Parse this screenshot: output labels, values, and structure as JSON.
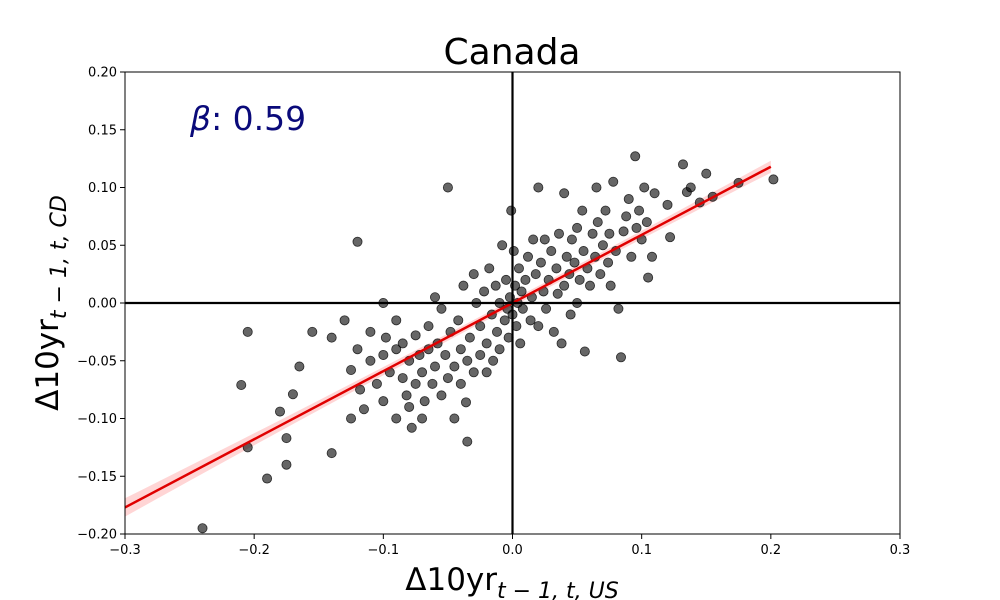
{
  "chart_data": {
    "type": "scatter",
    "title": "Canada",
    "xlabel": {
      "base": "Δ10yr",
      "sub": "t − 1, t, US"
    },
    "ylabel": {
      "base": "Δ10yr",
      "sub": "t − 1, t, CD"
    },
    "xlim": [
      -0.3,
      0.3
    ],
    "ylim": [
      -0.2,
      0.2
    ],
    "xticks": [
      -0.3,
      -0.2,
      -0.1,
      0.0,
      0.1,
      0.2,
      0.3
    ],
    "xtick_labels": [
      "−0.3",
      "−0.2",
      "−0.1",
      "0.0",
      "0.1",
      "0.2",
      "0.3"
    ],
    "yticks": [
      -0.2,
      -0.15,
      -0.1,
      -0.05,
      0.0,
      0.05,
      0.1,
      0.15,
      0.2
    ],
    "ytick_labels": [
      "−0.20",
      "−0.15",
      "−0.10",
      "−0.05",
      "0.00",
      "0.05",
      "0.10",
      "0.15",
      "0.20"
    ],
    "grid": false,
    "annotation": {
      "symbol": "β",
      "text": ": 0.59",
      "color": "#0a0a7a"
    },
    "regression": {
      "slope": 0.59,
      "intercept": 0.0,
      "x_range": [
        -0.3,
        0.2
      ],
      "color": "#e00000",
      "band_color": "#ffb3b3"
    },
    "zero_lines": true,
    "points": [
      [
        -0.24,
        -0.195
      ],
      [
        -0.21,
        -0.071
      ],
      [
        -0.205,
        -0.125
      ],
      [
        -0.205,
        -0.025
      ],
      [
        -0.19,
        -0.152
      ],
      [
        -0.18,
        -0.094
      ],
      [
        -0.175,
        -0.14
      ],
      [
        -0.175,
        -0.117
      ],
      [
        -0.17,
        -0.079
      ],
      [
        -0.165,
        -0.055
      ],
      [
        -0.155,
        -0.025
      ],
      [
        -0.14,
        -0.13
      ],
      [
        -0.14,
        -0.03
      ],
      [
        -0.13,
        -0.015
      ],
      [
        -0.125,
        -0.1
      ],
      [
        -0.125,
        -0.058
      ],
      [
        -0.12,
        0.053
      ],
      [
        -0.12,
        -0.04
      ],
      [
        -0.118,
        -0.075
      ],
      [
        -0.115,
        -0.092
      ],
      [
        -0.11,
        -0.025
      ],
      [
        -0.11,
        -0.05
      ],
      [
        -0.105,
        -0.07
      ],
      [
        -0.1,
        -0.045
      ],
      [
        -0.1,
        -0.085
      ],
      [
        -0.098,
        -0.03
      ],
      [
        -0.095,
        -0.06
      ],
      [
        -0.1,
        0.0
      ],
      [
        -0.09,
        -0.015
      ],
      [
        -0.09,
        -0.04
      ],
      [
        -0.09,
        -0.1
      ],
      [
        -0.085,
        -0.035
      ],
      [
        -0.085,
        -0.065
      ],
      [
        -0.082,
        -0.08
      ],
      [
        -0.08,
        -0.05
      ],
      [
        -0.08,
        -0.09
      ],
      [
        -0.078,
        -0.108
      ],
      [
        -0.075,
        -0.028
      ],
      [
        -0.075,
        -0.07
      ],
      [
        -0.072,
        -0.045
      ],
      [
        -0.07,
        -0.06
      ],
      [
        -0.07,
        -0.1
      ],
      [
        -0.068,
        -0.085
      ],
      [
        -0.065,
        -0.02
      ],
      [
        -0.065,
        -0.04
      ],
      [
        -0.062,
        -0.07
      ],
      [
        -0.06,
        -0.055
      ],
      [
        -0.06,
        0.005
      ],
      [
        -0.058,
        -0.035
      ],
      [
        -0.055,
        -0.08
      ],
      [
        -0.055,
        -0.005
      ],
      [
        -0.052,
        -0.045
      ],
      [
        -0.05,
        -0.065
      ],
      [
        -0.05,
        0.1
      ],
      [
        -0.048,
        -0.025
      ],
      [
        -0.045,
        -0.055
      ],
      [
        -0.045,
        -0.1
      ],
      [
        -0.042,
        -0.015
      ],
      [
        -0.04,
        -0.04
      ],
      [
        -0.04,
        -0.07
      ],
      [
        -0.038,
        0.015
      ],
      [
        -0.036,
        -0.086
      ],
      [
        -0.035,
        -0.12
      ],
      [
        -0.035,
        -0.05
      ],
      [
        -0.033,
        -0.03
      ],
      [
        -0.03,
        0.025
      ],
      [
        -0.03,
        -0.06
      ],
      [
        -0.028,
        0.0
      ],
      [
        -0.025,
        -0.045
      ],
      [
        -0.025,
        -0.02
      ],
      [
        -0.022,
        0.01
      ],
      [
        -0.02,
        -0.035
      ],
      [
        -0.02,
        -0.06
      ],
      [
        -0.018,
        0.03
      ],
      [
        -0.016,
        -0.01
      ],
      [
        -0.015,
        -0.05
      ],
      [
        -0.013,
        0.015
      ],
      [
        -0.012,
        -0.025
      ],
      [
        -0.01,
        0.0
      ],
      [
        -0.01,
        -0.04
      ],
      [
        -0.008,
        0.05
      ],
      [
        -0.006,
        -0.015
      ],
      [
        -0.005,
        0.02
      ],
      [
        -0.004,
        -0.005
      ],
      [
        -0.003,
        -0.03
      ],
      [
        -0.002,
        0.005
      ],
      [
        -0.001,
        0.08
      ],
      [
        0.0,
        -0.01
      ],
      [
        0.001,
        0.045
      ],
      [
        0.002,
        0.015
      ],
      [
        0.003,
        -0.02
      ],
      [
        0.004,
        0.0
      ],
      [
        0.005,
        0.03
      ],
      [
        0.006,
        -0.035
      ],
      [
        0.007,
        0.01
      ],
      [
        0.008,
        -0.005
      ],
      [
        0.01,
        0.02
      ],
      [
        0.012,
        0.04
      ],
      [
        0.014,
        -0.015
      ],
      [
        0.015,
        0.005
      ],
      [
        0.016,
        0.055
      ],
      [
        0.018,
        0.025
      ],
      [
        0.02,
        0.1
      ],
      [
        0.02,
        -0.02
      ],
      [
        0.022,
        0.035
      ],
      [
        0.024,
        0.01
      ],
      [
        0.025,
        0.055
      ],
      [
        0.026,
        -0.005
      ],
      [
        0.028,
        0.02
      ],
      [
        0.03,
        0.045
      ],
      [
        0.032,
        -0.025
      ],
      [
        0.034,
        0.03
      ],
      [
        0.035,
        0.008
      ],
      [
        0.036,
        0.06
      ],
      [
        0.038,
        -0.035
      ],
      [
        0.04,
        0.095
      ],
      [
        0.04,
        0.015
      ],
      [
        0.042,
        0.04
      ],
      [
        0.044,
        0.025
      ],
      [
        0.045,
        -0.01
      ],
      [
        0.046,
        0.055
      ],
      [
        0.048,
        0.035
      ],
      [
        0.05,
        0.065
      ],
      [
        0.05,
        0.0
      ],
      [
        0.052,
        0.02
      ],
      [
        0.054,
        0.08
      ],
      [
        0.055,
        0.045
      ],
      [
        0.056,
        -0.042
      ],
      [
        0.058,
        0.03
      ],
      [
        0.06,
        0.015
      ],
      [
        0.062,
        0.06
      ],
      [
        0.064,
        0.04
      ],
      [
        0.065,
        0.1
      ],
      [
        0.066,
        0.07
      ],
      [
        0.068,
        0.025
      ],
      [
        0.07,
        0.05
      ],
      [
        0.072,
        0.08
      ],
      [
        0.074,
        0.035
      ],
      [
        0.075,
        0.06
      ],
      [
        0.076,
        0.015
      ],
      [
        0.078,
        0.105
      ],
      [
        0.08,
        0.045
      ],
      [
        0.082,
        -0.005
      ],
      [
        0.084,
        -0.047
      ],
      [
        0.086,
        0.062
      ],
      [
        0.088,
        0.075
      ],
      [
        0.09,
        0.09
      ],
      [
        0.092,
        0.04
      ],
      [
        0.095,
        0.127
      ],
      [
        0.096,
        0.065
      ],
      [
        0.098,
        0.08
      ],
      [
        0.1,
        0.055
      ],
      [
        0.102,
        0.1
      ],
      [
        0.104,
        0.07
      ],
      [
        0.105,
        0.022
      ],
      [
        0.108,
        0.04
      ],
      [
        0.11,
        0.095
      ],
      [
        0.12,
        0.085
      ],
      [
        0.122,
        0.057
      ],
      [
        0.132,
        0.12
      ],
      [
        0.135,
        0.096
      ],
      [
        0.138,
        0.1
      ],
      [
        0.145,
        0.087
      ],
      [
        0.15,
        0.112
      ],
      [
        0.155,
        0.092
      ],
      [
        0.175,
        0.104
      ],
      [
        0.202,
        0.107
      ]
    ]
  }
}
